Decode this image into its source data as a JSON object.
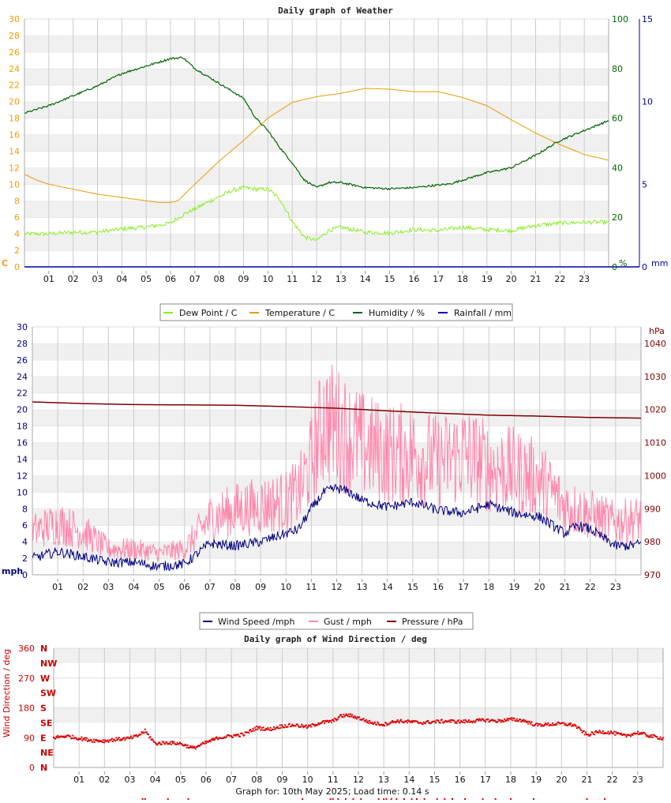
{
  "footer": "Graph for: 10th May 2025; Load time: 0.14 s",
  "hours": [
    "01",
    "02",
    "03",
    "04",
    "05",
    "06",
    "07",
    "08",
    "09",
    "10",
    "11",
    "12",
    "13",
    "14",
    "15",
    "16",
    "17",
    "18",
    "19",
    "20",
    "21",
    "22",
    "23"
  ],
  "chart_data": [
    {
      "id": "weather",
      "type": "line",
      "title": "Daily graph of Weather",
      "xlim": [
        0,
        24
      ],
      "y_left": {
        "unit": "C",
        "range": [
          0,
          30
        ],
        "ticks": [
          "0",
          "2",
          "4",
          "6",
          "8",
          "10",
          "12",
          "14",
          "16",
          "18",
          "20",
          "22",
          "24",
          "26",
          "28",
          "30"
        ],
        "color": "#ff9900"
      },
      "y_right1": {
        "unit": "%",
        "range": [
          0,
          100
        ],
        "ticks": [
          "0",
          "20",
          "40",
          "60",
          "80",
          "100"
        ],
        "color": "#006600"
      },
      "y_right2": {
        "unit": "mm",
        "range": [
          0,
          15
        ],
        "ticks": [
          "0",
          "5",
          "10",
          "15"
        ],
        "color": "#0000aa"
      },
      "legend": "bottom",
      "series": [
        {
          "name": "Dew Point / C",
          "axis": "left",
          "color": "#88ee22",
          "x": [
            0,
            1,
            2,
            3,
            4,
            5,
            6,
            6.5,
            7,
            7.5,
            8,
            8.5,
            9,
            9.5,
            10,
            10.5,
            11,
            11.5,
            12,
            12.5,
            13,
            14,
            15,
            16,
            17,
            18,
            19,
            20,
            21,
            22,
            23,
            24
          ],
          "y": [
            4,
            4,
            4.2,
            4.2,
            4.6,
            4.8,
            5.3,
            6.3,
            7,
            7.8,
            8.5,
            9.2,
            9.6,
            9.4,
            9.4,
            8.2,
            5.5,
            3.6,
            3.2,
            4.4,
            4.8,
            4.2,
            4.1,
            4.5,
            4.4,
            4.8,
            4.5,
            4.4,
            5,
            5.3,
            5.4,
            5.4
          ]
        },
        {
          "name": "Temperature / C",
          "axis": "left",
          "color": "#ee9900",
          "x": [
            0,
            0.5,
            1,
            2,
            3,
            4,
            5,
            5.5,
            6,
            6.3,
            7,
            8,
            9,
            10,
            11,
            12,
            13,
            14,
            15,
            16,
            17,
            18,
            19,
            20,
            21,
            22,
            23,
            24
          ],
          "y": [
            11.2,
            10.5,
            10,
            9.4,
            8.8,
            8.4,
            8,
            7.8,
            7.8,
            8,
            10,
            12.8,
            15.3,
            18,
            19.9,
            20.6,
            21,
            21.6,
            21.5,
            21.2,
            21.2,
            20.5,
            19.5,
            17.8,
            16.2,
            14.8,
            13.6,
            12.9
          ]
        },
        {
          "name": "Humidity / %",
          "axis": "right1",
          "color": "#006600",
          "x": [
            0,
            1,
            2,
            3,
            4,
            5,
            6,
            6.5,
            7,
            8,
            9,
            9.5,
            10,
            10.5,
            11,
            11.5,
            12,
            12.5,
            13,
            14,
            15,
            16,
            17,
            17.5,
            18,
            19,
            20,
            21,
            22,
            23,
            24
          ],
          "y": [
            62,
            65,
            69,
            73,
            78,
            81,
            84,
            84.5,
            80,
            74,
            68,
            60,
            55,
            48,
            42,
            35,
            32,
            34,
            34,
            32,
            31.5,
            32,
            33,
            33.5,
            35,
            38,
            40,
            45,
            51,
            55,
            59
          ]
        },
        {
          "name": "Rainfall / mm",
          "axis": "right2",
          "color": "#0000aa",
          "x": [
            0,
            24
          ],
          "y": [
            0,
            0
          ]
        }
      ]
    },
    {
      "id": "wind",
      "type": "line",
      "title": "",
      "xlim": [
        0,
        24
      ],
      "y_left": {
        "unit": "mph",
        "range": [
          0,
          30
        ],
        "ticks": [
          "0",
          "2",
          "4",
          "6",
          "8",
          "10",
          "12",
          "14",
          "16",
          "18",
          "20",
          "22",
          "24",
          "26",
          "28",
          "30"
        ],
        "color": "#000080"
      },
      "y_right": {
        "unit": "hPa",
        "range": [
          970,
          1045
        ],
        "ticks": [
          "970",
          "980",
          "990",
          "1000",
          "1010",
          "1020",
          "1030",
          "1040"
        ],
        "color": "#800000"
      },
      "legend": "bottom",
      "series": [
        {
          "name": "Wind Speed /mph",
          "axis": "left",
          "color": "#000080",
          "x": [
            0,
            1,
            2,
            3,
            4,
            5,
            6,
            7,
            8,
            9,
            10,
            10.5,
            11,
            11.5,
            12,
            12.5,
            13,
            14,
            15,
            16,
            17,
            18,
            19,
            20,
            21,
            21.5,
            22,
            23,
            23.5,
            24
          ],
          "y": [
            2,
            2.8,
            2.2,
            1.5,
            1.5,
            1,
            1.3,
            3.8,
            3.5,
            4,
            5,
            5.5,
            8,
            10,
            10.5,
            10,
            9,
            8.2,
            8.8,
            7.8,
            7.5,
            8.5,
            7.5,
            7,
            5,
            6,
            5.5,
            3.5,
            3.5,
            3.8
          ]
        },
        {
          "name": "Gust / mph",
          "axis": "left",
          "color": "#ff88aa",
          "x": [
            0,
            1,
            2,
            3,
            4,
            5,
            6,
            7,
            8,
            9,
            10,
            10.5,
            11,
            11.5,
            12,
            12.5,
            13,
            14,
            15,
            16,
            17,
            18,
            19,
            20,
            21,
            22,
            23,
            24
          ],
          "y": [
            5,
            6,
            5,
            3,
            3,
            2.5,
            3,
            6.5,
            7.5,
            8,
            8.5,
            9.5,
            13,
            18,
            17,
            16,
            15,
            14,
            14,
            13,
            14,
            12.5,
            12,
            11,
            8,
            7,
            6,
            6.5
          ]
        },
        {
          "name": "Pressure / hPa",
          "axis": "right",
          "color": "#800000",
          "x": [
            0,
            2,
            4,
            6,
            8,
            10,
            12,
            14,
            16,
            18,
            20,
            22,
            24
          ],
          "y": [
            1022.3,
            1021.8,
            1021.5,
            1021.4,
            1021.3,
            1020.9,
            1020.4,
            1019.6,
            1018.9,
            1018.3,
            1018,
            1017.6,
            1017.4
          ]
        }
      ]
    },
    {
      "id": "direction",
      "type": "scatter",
      "title": "Daily graph of Wind Direction / deg",
      "xlim": [
        0,
        24
      ],
      "ylabel": "Wind Direction / deg",
      "ylim": [
        0,
        360
      ],
      "y_ticks": [
        "0",
        "90",
        "180",
        "270",
        "360"
      ],
      "compass": [
        "N",
        "NE",
        "E",
        "SE",
        "S",
        "SW",
        "W",
        "NW",
        "N"
      ],
      "series": [
        {
          "name": "Wind Direction",
          "color": "#dd0000",
          "x": [
            0,
            0.5,
            1,
            1.5,
            2,
            2.5,
            3,
            3.3,
            3.6,
            4,
            4.5,
            5,
            5.5,
            6,
            6.5,
            7,
            7.5,
            8,
            8.5,
            9,
            9.5,
            10,
            10.5,
            11,
            11.3,
            11.6,
            12,
            12.5,
            13,
            13.5,
            14,
            14.5,
            15,
            15.5,
            16,
            16.5,
            17,
            17.5,
            18,
            18.5,
            19,
            19.5,
            20,
            20.5,
            21,
            21.5,
            22,
            22.5,
            23,
            23.5,
            24
          ],
          "y": [
            90,
            95,
            88,
            82,
            80,
            85,
            88,
            95,
            110,
            72,
            75,
            72,
            58,
            75,
            90,
            95,
            100,
            120,
            115,
            125,
            128,
            122,
            135,
            140,
            155,
            158,
            150,
            135,
            130,
            140,
            138,
            135,
            138,
            140,
            138,
            140,
            143,
            140,
            145,
            142,
            128,
            130,
            132,
            128,
            98,
            108,
            105,
            95,
            105,
            95,
            88
          ]
        }
      ]
    }
  ]
}
